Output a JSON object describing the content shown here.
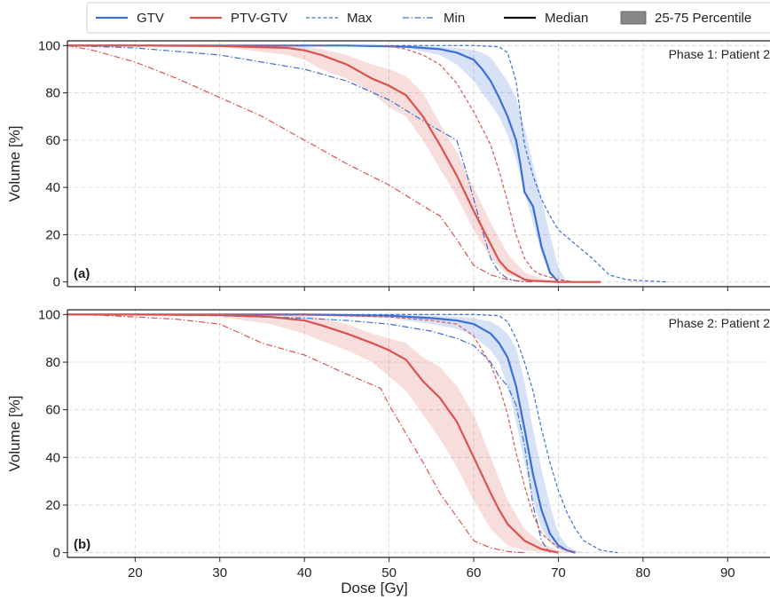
{
  "chart_data": [
    {
      "type": "line",
      "panel_tag": "(a)",
      "title": "Phase 1: Patient 2",
      "xlabel": "Dose [Gy]",
      "ylabel": "Volume [%]",
      "xlim": [
        12,
        95
      ],
      "ylim": [
        -2,
        102
      ],
      "xticks": [
        20,
        30,
        40,
        50,
        60,
        70,
        80,
        90
      ],
      "yticks": [
        0,
        20,
        40,
        60,
        80,
        100
      ],
      "grid": true,
      "series": [
        {
          "name": "GTV",
          "stat": "Median",
          "color": "#3a6fd4",
          "x": [
            12,
            30,
            45,
            52,
            56,
            58,
            60,
            61,
            62,
            63,
            64,
            65,
            65.5,
            66,
            67,
            68,
            69,
            70
          ],
          "y": [
            100,
            100,
            100,
            99.5,
            98.5,
            97,
            94,
            90,
            85,
            78,
            70,
            60,
            50,
            38,
            32,
            15,
            4,
            0
          ]
        },
        {
          "name": "GTV",
          "stat": "25-75 Percentile",
          "color": "#3a6fd4",
          "x": [
            12,
            45,
            52,
            56,
            58,
            60,
            61,
            62,
            63,
            64,
            65,
            66,
            67,
            68,
            69,
            70,
            71
          ],
          "lower": [
            100,
            100,
            99,
            96,
            92,
            85,
            80,
            75,
            70,
            62,
            52,
            38,
            25,
            12,
            4,
            1,
            0
          ],
          "upper": [
            100,
            100,
            100,
            99.5,
            99,
            98,
            97,
            95,
            90,
            85,
            78,
            65,
            50,
            35,
            20,
            6,
            0
          ]
        },
        {
          "name": "GTV",
          "stat": "Max",
          "color": "#3a6fd4",
          "x": [
            12,
            45,
            60,
            63,
            64,
            65,
            66,
            67,
            68,
            69,
            70,
            72,
            74,
            76,
            78,
            80,
            83
          ],
          "y": [
            100,
            100,
            100,
            99.5,
            97,
            85,
            58,
            45,
            35,
            28,
            22,
            16,
            10,
            3,
            1,
            0.5,
            0
          ]
        },
        {
          "name": "GTV",
          "stat": "Min",
          "color": "#3a6fd4",
          "x": [
            12,
            20,
            30,
            40,
            45,
            50,
            55,
            58,
            59,
            60,
            61,
            62,
            63,
            64,
            65,
            66
          ],
          "y": [
            100,
            99,
            96,
            90,
            85,
            77,
            66,
            60,
            48,
            35,
            22,
            10,
            4,
            1.5,
            0.5,
            0
          ]
        },
        {
          "name": "PTV-GTV",
          "stat": "Median",
          "color": "#d9534f",
          "x": [
            12,
            20,
            30,
            38,
            40,
            42,
            45,
            48,
            50,
            52,
            54,
            56,
            58,
            60,
            62,
            63,
            64,
            65,
            66,
            67,
            70,
            75
          ],
          "y": [
            100,
            100,
            99.8,
            99,
            98,
            96,
            92,
            86,
            83,
            79,
            70,
            58,
            45,
            30,
            16,
            9,
            5,
            3,
            1,
            0.5,
            0,
            0
          ]
        },
        {
          "name": "PTV-GTV",
          "stat": "25-75 Percentile",
          "color": "#d9534f",
          "x": [
            12,
            30,
            38,
            40,
            42,
            45,
            48,
            50,
            52,
            54,
            56,
            58,
            60,
            62,
            64,
            66,
            68,
            70,
            75
          ],
          "lower": [
            100,
            99.5,
            96,
            94,
            90,
            86,
            80,
            74,
            70,
            60,
            48,
            36,
            22,
            10,
            3,
            1,
            0.3,
            0,
            0
          ],
          "upper": [
            100,
            100,
            99.8,
            99.5,
            98.5,
            96,
            92,
            90,
            87,
            80,
            67,
            55,
            40,
            25,
            12,
            4,
            1.5,
            0.5,
            0
          ]
        },
        {
          "name": "PTV-GTV",
          "stat": "Max",
          "color": "#d9534f",
          "x": [
            12,
            30,
            45,
            50,
            52,
            54,
            56,
            58,
            60,
            62,
            63,
            64,
            65,
            66,
            67,
            68,
            70,
            72
          ],
          "y": [
            100,
            100,
            100,
            99.8,
            98.5,
            96,
            92,
            84,
            72,
            58,
            47,
            34,
            20,
            10,
            5,
            3,
            1,
            0
          ]
        },
        {
          "name": "PTV-GTV",
          "stat": "Min",
          "color": "#d9534f",
          "x": [
            12,
            15,
            20,
            25,
            30,
            35,
            40,
            45,
            50,
            55,
            56,
            58,
            60,
            62,
            64,
            66,
            67
          ],
          "y": [
            100,
            98,
            93,
            86,
            78,
            70,
            60,
            50,
            41,
            30,
            28,
            18,
            7,
            3,
            1,
            0.2,
            0
          ]
        }
      ]
    },
    {
      "type": "line",
      "panel_tag": "(b)",
      "title": "Phase 2: Patient 2",
      "xlabel": "Dose [Gy]",
      "ylabel": "Volume [%]",
      "xlim": [
        12,
        95
      ],
      "ylim": [
        -2,
        102
      ],
      "xticks": [
        20,
        30,
        40,
        50,
        60,
        70,
        80,
        90
      ],
      "yticks": [
        0,
        20,
        40,
        60,
        80,
        100
      ],
      "grid": true,
      "series": [
        {
          "name": "GTV",
          "stat": "Median",
          "color": "#3a6fd4",
          "x": [
            12,
            40,
            50,
            55,
            58,
            60,
            62,
            63,
            64,
            65,
            66,
            67,
            68,
            69,
            70,
            71,
            72
          ],
          "y": [
            100,
            100,
            99.5,
            98.5,
            97.5,
            96,
            92,
            88,
            82,
            70,
            52,
            33,
            18,
            8,
            3,
            1,
            0
          ]
        },
        {
          "name": "GTV",
          "stat": "25-75 Percentile",
          "color": "#3a6fd4",
          "x": [
            12,
            40,
            50,
            55,
            58,
            60,
            62,
            63,
            64,
            65,
            66,
            67,
            68,
            69,
            70,
            71,
            72,
            73
          ],
          "lower": [
            100,
            99.8,
            98.5,
            96,
            94,
            91,
            85,
            80,
            70,
            55,
            38,
            22,
            10,
            4,
            1.5,
            0.5,
            0,
            0
          ],
          "upper": [
            100,
            100,
            100,
            99.5,
            99,
            98.5,
            97,
            95,
            92,
            86,
            72,
            52,
            35,
            20,
            8,
            3,
            1,
            0
          ]
        },
        {
          "name": "GTV",
          "stat": "Max",
          "color": "#3a6fd4",
          "x": [
            12,
            40,
            60,
            63,
            64,
            65,
            66,
            67,
            68,
            69,
            70,
            71,
            72,
            73,
            75,
            77
          ],
          "y": [
            100,
            100,
            100,
            99.5,
            97,
            90,
            80,
            68,
            52,
            38,
            26,
            17,
            10,
            5,
            1,
            0
          ]
        },
        {
          "name": "GTV",
          "stat": "Min",
          "color": "#3a6fd4",
          "x": [
            12,
            20,
            30,
            40,
            45,
            50,
            55,
            58,
            60,
            62,
            63,
            64,
            65,
            66,
            67,
            68,
            69
          ],
          "y": [
            100,
            100,
            99.5,
            98.5,
            97.5,
            96,
            93,
            90,
            87,
            80,
            74,
            70,
            62,
            45,
            20,
            5,
            0
          ]
        },
        {
          "name": "PTV-GTV",
          "stat": "Median",
          "color": "#d9534f",
          "x": [
            12,
            20,
            30,
            36,
            40,
            42,
            45,
            48,
            50,
            52,
            54,
            56,
            58,
            60,
            62,
            63,
            64,
            66,
            68,
            70
          ],
          "y": [
            100,
            100,
            99.8,
            99,
            97.5,
            95.5,
            92,
            88,
            85,
            81,
            72,
            65,
            55,
            40,
            25,
            18,
            12,
            5,
            1.5,
            0
          ]
        },
        {
          "name": "PTV-GTV",
          "stat": "25-75 Percentile",
          "color": "#d9534f",
          "x": [
            12,
            30,
            36,
            40,
            42,
            45,
            48,
            50,
            52,
            54,
            56,
            58,
            60,
            62,
            64,
            66,
            68,
            70,
            72
          ],
          "lower": [
            100,
            99,
            96,
            92,
            89,
            85,
            80,
            74,
            68,
            58,
            48,
            36,
            22,
            10,
            3,
            1,
            0.3,
            0,
            0
          ],
          "upper": [
            100,
            100,
            99.8,
            99.5,
            98.5,
            96,
            92,
            90,
            88,
            82,
            78,
            70,
            58,
            40,
            22,
            10,
            4,
            1,
            0
          ]
        },
        {
          "name": "PTV-GTV",
          "stat": "Max",
          "color": "#d9534f",
          "x": [
            12,
            30,
            40,
            50,
            55,
            58,
            60,
            61,
            62,
            63,
            64,
            65,
            66,
            67,
            68,
            70,
            72
          ],
          "y": [
            100,
            100,
            99.8,
            99,
            97.5,
            96,
            91,
            85,
            79,
            70,
            58,
            42,
            28,
            16,
            8,
            2,
            0
          ]
        },
        {
          "name": "PTV-GTV",
          "stat": "Min",
          "color": "#d9534f",
          "x": [
            12,
            15,
            20,
            25,
            30,
            35,
            40,
            45,
            49,
            50,
            52,
            54,
            56,
            58,
            60,
            62,
            64,
            66
          ],
          "y": [
            100,
            99.8,
            99,
            98,
            96,
            88,
            83,
            75,
            69,
            62,
            50,
            38,
            25,
            15,
            5,
            2,
            0.5,
            0
          ]
        }
      ]
    }
  ],
  "legend": {
    "placement": "top",
    "items": [
      {
        "label": "GTV",
        "kind": "line",
        "color": "#3a6fd4"
      },
      {
        "label": "PTV-GTV",
        "kind": "line",
        "color": "#d9534f"
      },
      {
        "label": "Max",
        "kind": "dashed",
        "color": "#3a6fd4"
      },
      {
        "label": "Min",
        "kind": "dashdot",
        "color": "#3a6fd4"
      },
      {
        "label": "Median",
        "kind": "line",
        "color": "#111111"
      },
      {
        "label": "25-75 Percentile",
        "kind": "patch",
        "color": "#888888"
      }
    ]
  }
}
